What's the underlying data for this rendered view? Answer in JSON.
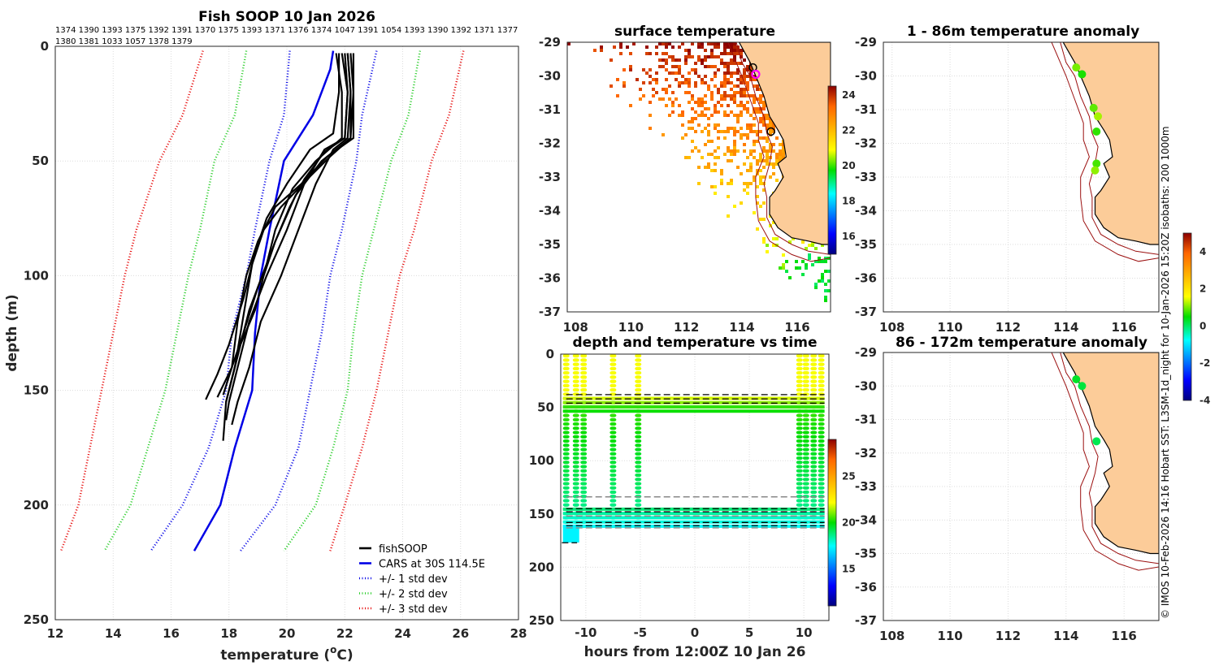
{
  "footer_credit": "© IMOS 10-Feb-2026 14:16 Hobart SST: L3SM-1d_night for 10-Jan-2026 15:20Z isobaths: 200  1000m",
  "chart_data": [
    {
      "id": "profiles",
      "type": "line",
      "title": "Fish SOOP 10 Jan 2026",
      "vessel_ids_line1": "1374 1390 1393 1375 1392 1391 1370 1375 1393 1371 1376 1374 1047 1391 1054 1393 1390 1392 1371 1377",
      "vessel_ids_line2": "1380 1381 1033 1057 1378 1379",
      "xlabel_main": "temperature (",
      "xlabel_sup": "o",
      "xlabel_unit": "C)",
      "ylabel": "depth (m)",
      "xlim": [
        12,
        28
      ],
      "ylim": [
        250,
        0
      ],
      "xticks": [
        "12",
        "14",
        "16",
        "18",
        "20",
        "22",
        "24",
        "26",
        "28"
      ],
      "yticks": [
        "0",
        "50",
        "100",
        "150",
        "200",
        "250"
      ],
      "legend": [
        {
          "label": "fishSOOP",
          "color": "#000000",
          "style": "solid"
        },
        {
          "label": "CARS at 30S 114.5E",
          "color": "#0000e6",
          "style": "solid"
        },
        {
          "label": "+/- 1 std dev",
          "color": "#0000e6",
          "style": "dotted"
        },
        {
          "label": "+/- 2 std dev",
          "color": "#22cc22",
          "style": "dotted"
        },
        {
          "label": "+/- 3 std dev",
          "color": "#e60000",
          "style": "dotted"
        }
      ],
      "cars_mean": {
        "depth": [
          2,
          10,
          30,
          50,
          80,
          100,
          125,
          150,
          175,
          200,
          220
        ],
        "temp": [
          21.6,
          21.5,
          20.9,
          19.9,
          19.4,
          19.1,
          18.9,
          18.8,
          18.2,
          17.7,
          16.8
        ]
      },
      "sd1_low": {
        "depth": [
          2,
          30,
          50,
          80,
          100,
          125,
          150,
          175,
          200,
          220
        ],
        "temp": [
          20.1,
          19.9,
          19.4,
          18.9,
          18.6,
          18.1,
          17.9,
          17.3,
          16.4,
          15.3
        ]
      },
      "sd1_high": {
        "depth": [
          2,
          30,
          50,
          80,
          100,
          125,
          150,
          175,
          200,
          220
        ],
        "temp": [
          23.1,
          22.6,
          22.4,
          21.9,
          21.5,
          21.2,
          20.8,
          20.4,
          19.6,
          18.4
        ]
      },
      "sd2_low": {
        "depth": [
          2,
          30,
          50,
          80,
          100,
          125,
          150,
          175,
          200,
          220
        ],
        "temp": [
          18.6,
          18.2,
          17.5,
          17.0,
          16.6,
          16.2,
          15.8,
          15.2,
          14.6,
          13.7
        ]
      },
      "sd2_high": {
        "depth": [
          2,
          30,
          50,
          80,
          100,
          125,
          150,
          175,
          200,
          220
        ],
        "temp": [
          24.6,
          24.2,
          23.6,
          23.0,
          22.6,
          22.3,
          22.1,
          21.6,
          21.0,
          19.9
        ]
      },
      "sd3_low": {
        "depth": [
          2,
          30,
          50,
          80,
          100,
          125,
          150,
          175,
          200,
          220
        ],
        "temp": [
          17.1,
          16.4,
          15.6,
          14.8,
          14.4,
          14.0,
          13.6,
          13.2,
          12.8,
          12.2
        ]
      },
      "sd3_high": {
        "depth": [
          2,
          30,
          50,
          80,
          100,
          125,
          150,
          175,
          200,
          220
        ],
        "temp": [
          26.1,
          25.6,
          25.0,
          24.4,
          23.9,
          23.5,
          23.1,
          22.6,
          22.0,
          21.5
        ]
      },
      "fish_profiles": [
        {
          "depth": [
            3,
            20,
            40,
            45,
            60,
            80,
            100,
            120,
            140,
            155,
            163
          ],
          "temp": [
            21.9,
            22.1,
            22.0,
            21.3,
            20.6,
            20.0,
            19.3,
            18.7,
            18.3,
            18.0,
            17.9
          ]
        },
        {
          "depth": [
            3,
            20,
            40,
            45,
            60,
            80,
            100,
            120,
            140,
            155,
            165
          ],
          "temp": [
            22.1,
            22.2,
            22.1,
            21.6,
            21.0,
            20.4,
            19.8,
            19.1,
            18.7,
            18.3,
            18.1
          ]
        },
        {
          "depth": [
            3,
            20,
            40,
            50,
            65,
            85,
            105,
            125,
            140,
            153
          ],
          "temp": [
            22.3,
            22.3,
            22.2,
            21.2,
            20.3,
            19.6,
            19.0,
            18.5,
            18.1,
            17.6
          ]
        },
        {
          "depth": [
            3,
            20,
            38,
            45,
            60,
            75,
            90,
            110,
            130,
            143,
            154
          ],
          "temp": [
            21.8,
            21.8,
            21.6,
            20.8,
            20.0,
            19.3,
            18.9,
            18.5,
            18.0,
            17.6,
            17.2
          ]
        },
        {
          "depth": [
            3,
            20,
            40,
            50,
            62,
            80,
            95,
            115,
            135,
            155,
            172
          ],
          "temp": [
            21.7,
            21.9,
            21.9,
            21.0,
            20.2,
            19.6,
            19.3,
            18.7,
            18.3,
            17.9,
            17.8
          ]
        },
        {
          "depth": [
            3,
            20,
            40,
            46,
            58,
            70,
            85,
            100,
            115,
            130,
            145,
            155
          ],
          "temp": [
            22.0,
            22.1,
            22.0,
            21.3,
            20.6,
            20.1,
            19.6,
            19.2,
            18.9,
            18.4,
            18.1,
            17.9
          ]
        },
        {
          "depth": [
            3,
            20,
            40,
            48,
            60,
            70,
            85,
            100,
            120,
            140,
            152
          ],
          "temp": [
            22.2,
            22.3,
            22.3,
            21.4,
            20.5,
            19.6,
            19.0,
            18.6,
            18.3,
            18.1,
            17.8
          ]
        },
        {
          "depth": [
            3,
            20,
            40,
            48,
            58,
            70,
            80,
            95,
            110,
            125,
            140,
            150
          ],
          "temp": [
            22.1,
            22.2,
            22.2,
            21.5,
            20.7,
            19.8,
            19.2,
            18.8,
            18.6,
            18.4,
            18.2,
            18.0
          ]
        }
      ]
    },
    {
      "id": "sst_map",
      "type": "heatmap",
      "title": "surface temperature",
      "xlim": [
        107.7,
        117.2
      ],
      "ylim": [
        -37,
        -29
      ],
      "xticks": [
        "108",
        "110",
        "112",
        "114",
        "116"
      ],
      "yticks": [
        "-29",
        "-30",
        "-31",
        "-32",
        "-33",
        "-34",
        "-35",
        "-36",
        "-37"
      ],
      "colorbar": {
        "min": 15,
        "max": 24.5,
        "ticks": [
          "16",
          "18",
          "20",
          "22",
          "24"
        ]
      },
      "markers_black": [
        {
          "lon": 114.4,
          "lat": -29.75
        },
        {
          "lon": 115.05,
          "lat": -31.65
        }
      ],
      "marker_magenta": {
        "lon": 114.5,
        "lat": -29.95
      }
    },
    {
      "id": "depth_time",
      "type": "scatter",
      "title": "depth and temperature vs time",
      "xlabel": "hours from 12:00Z 10 Jan 26",
      "xlim": [
        -12.3,
        12.3
      ],
      "ylim": [
        250,
        0
      ],
      "xticks": [
        "-10",
        "-5",
        "0",
        "5",
        "10"
      ],
      "yticks": [
        "0",
        "50",
        "100",
        "150",
        "200",
        "250"
      ],
      "colorbar": {
        "min": 11,
        "max": 29,
        "ticks": [
          "15",
          "20",
          "25"
        ]
      },
      "segments_hours": [
        -11.8,
        -10.9,
        -10.2,
        -7.5,
        -5.2,
        9.6,
        10.2,
        10.9,
        11.6
      ],
      "dashed_black_depths": [
        38,
        42,
        46,
        145,
        148,
        158,
        161,
        177
      ],
      "dashed_grey_depths": [
        134,
        152,
        163
      ]
    },
    {
      "id": "anom_upper",
      "type": "scatter",
      "title": "1 - 86m temperature anomaly",
      "xlim": [
        107.7,
        117.2
      ],
      "ylim": [
        -37,
        -29
      ],
      "xticks": [
        "108",
        "110",
        "112",
        "114",
        "116"
      ],
      "yticks": [
        "-29",
        "-30",
        "-31",
        "-32",
        "-33",
        "-34",
        "-35",
        "-36",
        "-37"
      ],
      "points": [
        {
          "lon": 114.35,
          "lat": -29.75,
          "anom": 1.0
        },
        {
          "lon": 114.55,
          "lat": -29.95,
          "anom": 0.6
        },
        {
          "lon": 114.95,
          "lat": -30.95,
          "anom": 0.9
        },
        {
          "lon": 115.1,
          "lat": -31.2,
          "anom": 1.2
        },
        {
          "lon": 115.05,
          "lat": -31.65,
          "anom": 0.7
        },
        {
          "lon": 115.05,
          "lat": -32.6,
          "anom": 0.8
        },
        {
          "lon": 115.0,
          "lat": -32.8,
          "anom": 1.1
        }
      ]
    },
    {
      "id": "anom_lower",
      "type": "scatter",
      "title": "86 - 172m temperature anomaly",
      "xlim": [
        107.7,
        117.2
      ],
      "ylim": [
        -37,
        -29
      ],
      "xticks": [
        "108",
        "110",
        "112",
        "114",
        "116"
      ],
      "yticks": [
        "-29",
        "-30",
        "-31",
        "-32",
        "-33",
        "-34",
        "-35",
        "-36",
        "-37"
      ],
      "colorbar": {
        "min": -4,
        "max": 5,
        "ticks": [
          "4",
          "2",
          "0",
          "-2",
          "-4"
        ]
      },
      "points": [
        {
          "lon": 114.35,
          "lat": -29.8,
          "anom": 0.3
        },
        {
          "lon": 114.55,
          "lat": -30.0,
          "anom": 0.2
        },
        {
          "lon": 115.05,
          "lat": -31.65,
          "anom": 0.1
        }
      ]
    }
  ]
}
